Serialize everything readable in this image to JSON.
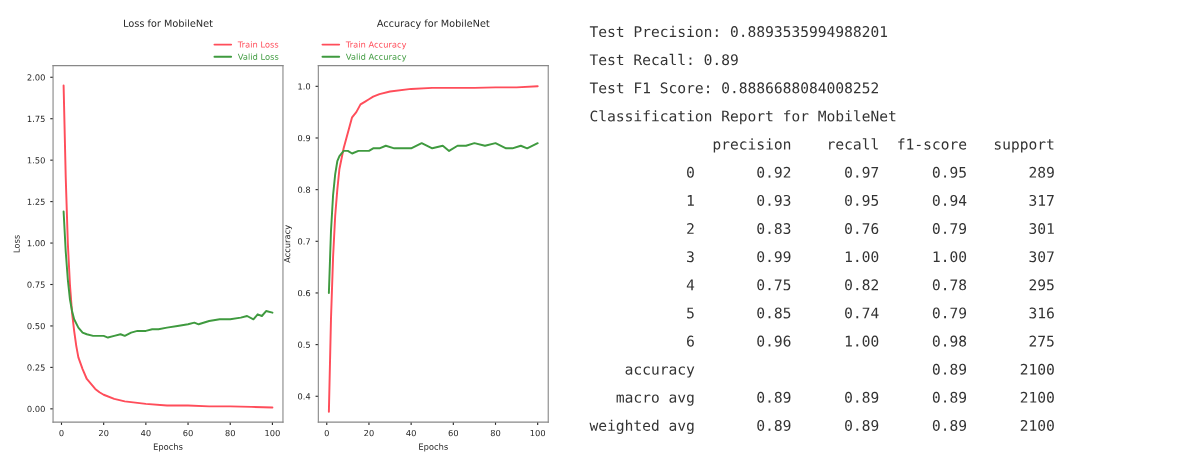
{
  "chart_data": [
    {
      "type": "line",
      "title": "Loss for MobileNet",
      "xlabel": "Epochs",
      "ylabel": "Loss",
      "xlim": [
        -4,
        105
      ],
      "xticks": [
        0,
        20,
        40,
        60,
        80,
        100
      ],
      "ylim": [
        -0.08,
        2.07
      ],
      "yticks": [
        {
          "value": 0,
          "label": "0.00"
        },
        0.25,
        {
          "value": 0.5,
          "label": "0.50"
        },
        0.75,
        {
          "value": 1,
          "label": "1.00"
        },
        1.25,
        {
          "value": 1.5,
          "label": "1.50"
        },
        1.75,
        {
          "value": 2,
          "label": "2.00"
        }
      ],
      "grid": false,
      "legend": "top right",
      "series": [
        {
          "name": "Train Loss",
          "color": "#ff4d5a",
          "x": [
            1,
            2,
            3,
            4,
            5,
            6,
            7,
            8,
            10,
            12,
            14,
            16,
            18,
            20,
            25,
            30,
            40,
            50,
            60,
            70,
            80,
            90,
            100
          ],
          "values": [
            1.95,
            1.4,
            1.0,
            0.75,
            0.58,
            0.47,
            0.38,
            0.31,
            0.24,
            0.18,
            0.15,
            0.12,
            0.1,
            0.085,
            0.06,
            0.045,
            0.03,
            0.02,
            0.02,
            0.015,
            0.015,
            0.012,
            0.008
          ]
        },
        {
          "name": "Valid Loss",
          "color": "#3f9a3f",
          "x": [
            1,
            2,
            3,
            4,
            5,
            6,
            8,
            10,
            12,
            15,
            20,
            22,
            25,
            28,
            30,
            33,
            36,
            40,
            43,
            46,
            50,
            55,
            60,
            63,
            65,
            70,
            75,
            80,
            85,
            88,
            91,
            93,
            95,
            97,
            100
          ],
          "values": [
            1.19,
            0.95,
            0.78,
            0.66,
            0.59,
            0.54,
            0.49,
            0.46,
            0.45,
            0.44,
            0.44,
            0.43,
            0.44,
            0.45,
            0.44,
            0.46,
            0.47,
            0.47,
            0.48,
            0.48,
            0.49,
            0.5,
            0.51,
            0.52,
            0.51,
            0.53,
            0.54,
            0.54,
            0.55,
            0.56,
            0.54,
            0.57,
            0.56,
            0.59,
            0.58
          ]
        }
      ]
    },
    {
      "type": "line",
      "title": "Accuracy for MobileNet",
      "xlabel": "Epochs",
      "ylabel": "Accuracy",
      "xlim": [
        -4,
        105
      ],
      "xticks": [
        0,
        20,
        40,
        60,
        80,
        100
      ],
      "ylim": [
        0.35,
        1.04
      ],
      "yticks": [
        0.4,
        0.5,
        0.6,
        0.7,
        0.8,
        0.9,
        {
          "value": 1,
          "label": "1.0"
        }
      ],
      "grid": false,
      "legend": "top left",
      "series": [
        {
          "name": "Train Accuracy",
          "color": "#ff4d5a",
          "x": [
            1,
            2,
            3,
            4,
            5,
            6,
            8,
            10,
            12,
            14,
            16,
            18,
            20,
            22,
            25,
            30,
            40,
            50,
            60,
            70,
            80,
            90,
            100
          ],
          "values": [
            0.37,
            0.55,
            0.67,
            0.75,
            0.8,
            0.84,
            0.88,
            0.91,
            0.94,
            0.95,
            0.965,
            0.97,
            0.975,
            0.98,
            0.985,
            0.99,
            0.995,
            0.997,
            0.997,
            0.997,
            0.998,
            0.998,
            1.0
          ]
        },
        {
          "name": "Valid Accuracy",
          "color": "#3f9a3f",
          "x": [
            1,
            2,
            3,
            4,
            5,
            6,
            8,
            10,
            12,
            15,
            20,
            22,
            25,
            28,
            32,
            36,
            40,
            45,
            50,
            55,
            58,
            62,
            66,
            70,
            75,
            80,
            85,
            88,
            92,
            95,
            100
          ],
          "values": [
            0.6,
            0.72,
            0.79,
            0.83,
            0.855,
            0.865,
            0.875,
            0.875,
            0.87,
            0.875,
            0.875,
            0.88,
            0.88,
            0.885,
            0.88,
            0.88,
            0.88,
            0.89,
            0.88,
            0.885,
            0.875,
            0.885,
            0.885,
            0.89,
            0.885,
            0.89,
            0.88,
            0.88,
            0.885,
            0.88,
            0.89
          ]
        }
      ]
    },
    {
      "type": "other",
      "annotations": [
        "Test Precision: 0.8893535994988201",
        "Test Recall: 0.89",
        "Test F1 Score: 0.8886688084008252",
        "Classification Report for MobileNet",
        "              precision    recall  f1-score   support",
        "           0       0.92      0.97      0.95       289",
        "           1       0.93      0.95      0.94       317",
        "           2       0.83      0.76      0.79       301",
        "           3       0.99      1.00      1.00       307",
        "           4       0.75      0.82      0.78       295",
        "           5       0.85      0.74      0.79       316",
        "           6       0.96      1.00      0.98       275",
        "    accuracy                           0.89      2100",
        "   macro avg       0.89      0.89      0.89      2100",
        "weighted avg       0.89      0.89      0.89      2100"
      ]
    }
  ]
}
